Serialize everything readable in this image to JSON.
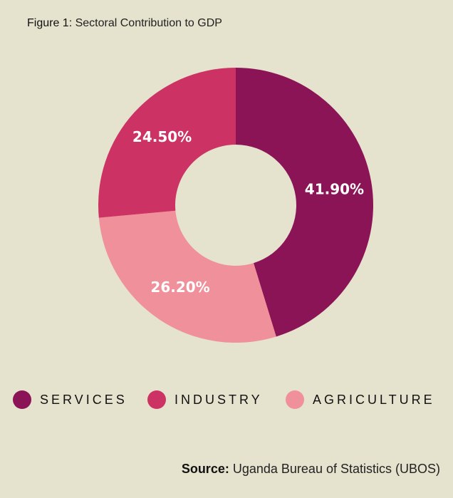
{
  "figure": {
    "label": "Figure 1:",
    "title": "Sectoral Contribution to GDP"
  },
  "chart_data": {
    "type": "pie",
    "variant": "donut",
    "categories": [
      "SERVICES",
      "INDUSTRY",
      "AGRICULTURE"
    ],
    "values": [
      41.9,
      24.5,
      26.2
    ],
    "value_labels": [
      "41.90%",
      "24.50%",
      "26.20%"
    ],
    "colors": [
      "#8b1457",
      "#cc3364",
      "#f0909a"
    ],
    "label_color": "#ffffff",
    "legend": "bottom"
  },
  "legend": {
    "items": [
      {
        "label": "SERVICES",
        "color": "#8b1457"
      },
      {
        "label": "INDUSTRY",
        "color": "#cc3364"
      },
      {
        "label": "AGRICULTURE",
        "color": "#f0909a"
      }
    ]
  },
  "source": {
    "label": "Source:",
    "text": "Uganda Bureau of Statistics (UBOS)"
  }
}
